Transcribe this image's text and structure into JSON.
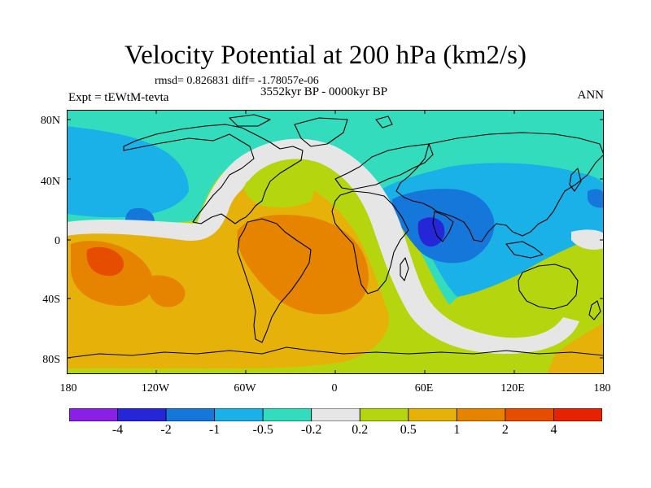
{
  "title": "Velocity Potential at 200 hPa (km2/s)",
  "stats_line": "rmsd= 0.826831 diff= -1.78057e-06",
  "period": "3552kyr BP - 0000kyr BP",
  "experiment": "Expt = tEWtM-tevta",
  "season": "ANN",
  "lat_labels": [
    "80N",
    "40N",
    "0",
    "40S",
    "80S"
  ],
  "lon_labels": [
    "180",
    "120W",
    "60W",
    "0",
    "60E",
    "120E",
    "180"
  ],
  "colorbar": {
    "colors": [
      "#8a1fe6",
      "#2626d9",
      "#1577d9",
      "#1ab0e8",
      "#33dcbd",
      "#e6e6e6",
      "#b5d60f",
      "#e6b20a",
      "#e68400",
      "#e64d00",
      "#e62200"
    ],
    "labels": [
      "-4",
      "-2",
      "-1",
      "-0.5",
      "-0.2",
      "0.2",
      "0.5",
      "1",
      "2",
      "4"
    ]
  },
  "colors": {
    "ocean_bg": "#b5d60f",
    "land_outline": "#000000"
  }
}
